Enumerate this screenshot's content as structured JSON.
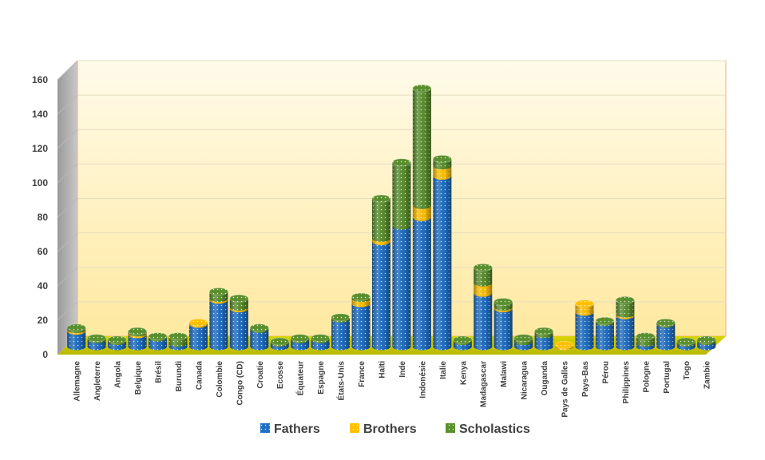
{
  "chart_data": {
    "type": "bar",
    "stacked": true,
    "categories": [
      "Allemagne",
      "Angleterre",
      "Angola",
      "Belgique",
      "Brésil",
      "Burundi",
      "Canada",
      "Colombie",
      "Congo (CD)",
      "Croatie",
      "Ecosse",
      "Équateur",
      "Espagne",
      "États-Unis",
      "France",
      "Haïti",
      "Inde",
      "Indonésie",
      "Italie",
      "Kenya",
      "Madagascar",
      "Malawi",
      "Nicaragua",
      "Ouganda",
      "Pays de Galles",
      "Pays-Bas",
      "Pérou",
      "Philippines",
      "Pologne",
      "Portugal",
      "Togo",
      "Zambie"
    ],
    "series": [
      {
        "name": "Fathers",
        "color": "#1f6fc5",
        "values": [
          9,
          4,
          3,
          7,
          5,
          2,
          13,
          27,
          22,
          10,
          2,
          4,
          4,
          16,
          25,
          61,
          70,
          75,
          99,
          3,
          31,
          22,
          3,
          7,
          0,
          20,
          14,
          18,
          2,
          13,
          2,
          3
        ]
      },
      {
        "name": "Brothers",
        "color": "#ffc000",
        "values": [
          1,
          0,
          0,
          1,
          0,
          0,
          1,
          1,
          1,
          0,
          0,
          0,
          0,
          0,
          3,
          2,
          0,
          7,
          6,
          0,
          6,
          1,
          0,
          0,
          1,
          5,
          0,
          1,
          0,
          0,
          0,
          0
        ]
      },
      {
        "name": "Scholastics",
        "color": "#5a8f2e",
        "values": [
          1,
          1,
          1,
          1,
          1,
          4,
          0,
          4,
          5,
          1,
          1,
          1,
          1,
          1,
          1,
          23,
          37,
          68,
          4,
          1,
          9,
          3,
          2,
          2,
          0,
          0,
          1,
          8,
          4,
          1,
          1,
          1
        ]
      }
    ],
    "ylim": [
      0,
      160
    ],
    "yticks": [
      0,
      20,
      40,
      60,
      80,
      100,
      120,
      140,
      160
    ],
    "grid": true,
    "legend_position": "bottom"
  }
}
